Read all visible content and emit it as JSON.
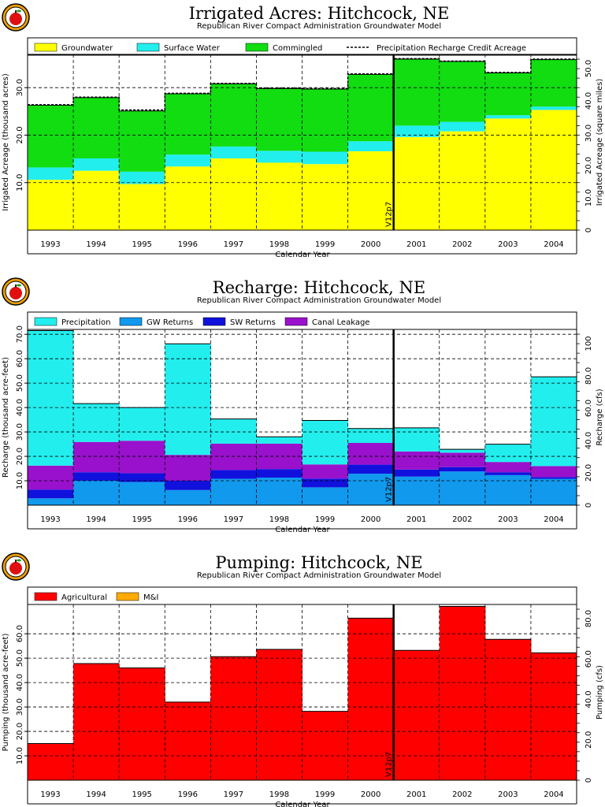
{
  "colors": {
    "groundwater": "#ffff00",
    "surface_water": "#22eeee",
    "commingled": "#11dd11",
    "precipitation": "#22eeee",
    "gw_returns": "#1199ee",
    "sw_returns": "#1111dd",
    "canal_leakage": "#9911cc",
    "agricultural": "#ff0000",
    "mi": "#ffaa00",
    "logo_apple": "#e01010",
    "logo_ring": "#f0a000"
  },
  "chart_data": [
    {
      "type": "area",
      "title": "Irrigated Acres: Hitchcock, NE",
      "subtitle": "Republican River Compact Administration Groundwater Model",
      "xlabel": "Calendar Year",
      "ylabel": "Irrigated Acreage (thousand acres)",
      "ylabel_right": "Irrigated Acreage (square miles)",
      "categories": [
        "1993",
        "1994",
        "1995",
        "1996",
        "1997",
        "1998",
        "1999",
        "2000",
        "2001",
        "2002",
        "2003",
        "2004"
      ],
      "ylim": [
        0,
        37
      ],
      "y_ticks": [
        "10.0",
        "20.0",
        "30.0"
      ],
      "y_ticks_right": [
        "0",
        "10.0",
        "20.0",
        "30.0",
        "40.0",
        "50.0"
      ],
      "grid": true,
      "legend_position": "top",
      "stacked": true,
      "series": [
        {
          "name": "Groundwater",
          "values": [
            10.6,
            12.5,
            9.7,
            13.4,
            15.1,
            14.2,
            13.9,
            16.6,
            19.6,
            20.8,
            23.5,
            25.3
          ]
        },
        {
          "name": "Surface Water",
          "values": [
            2.6,
            2.6,
            2.6,
            2.5,
            2.5,
            2.5,
            2.6,
            2.1,
            2.4,
            2.0,
            0.7,
            0.7
          ]
        },
        {
          "name": "Commingled",
          "values": [
            13.1,
            12.8,
            12.8,
            12.8,
            13.2,
            13.1,
            13.2,
            14.1,
            14.0,
            12.7,
            8.9,
            9.9
          ]
        }
      ],
      "line_series": {
        "name": "Precipitation Recharge Credit Acreage",
        "values": [
          26.4,
          28.0,
          25.3,
          28.8,
          30.9,
          29.9,
          29.8,
          32.9,
          36.1,
          35.6,
          33.2,
          36.0
        ]
      },
      "annotation": {
        "text": "V12p7",
        "x_between": [
          "2000",
          "2001"
        ]
      }
    },
    {
      "type": "area",
      "title": "Recharge: Hitchcock, NE",
      "subtitle": "Republican River Compact Administration Groundwater Model",
      "xlabel": "Calendar Year",
      "ylabel": "Recharge (thousand acre-feet)",
      "ylabel_right": "Recharge (cfs)",
      "categories": [
        "1993",
        "1994",
        "1995",
        "1996",
        "1997",
        "1998",
        "1999",
        "2000",
        "2001",
        "2002",
        "2003",
        "2004"
      ],
      "ylim": [
        0,
        72
      ],
      "y_ticks": [
        "10.0",
        "20.0",
        "30.0",
        "40.0",
        "50.0",
        "60.0",
        "70.0"
      ],
      "y_ticks_right": [
        "0",
        "20.0",
        "40.0",
        "60.0",
        "80.0",
        "100"
      ],
      "grid": true,
      "legend_position": "top",
      "stacked": true,
      "series": [
        {
          "name": "GW Returns",
          "values": [
            2.8,
            10.0,
            9.5,
            6.2,
            10.8,
            11.3,
            7.3,
            12.9,
            11.7,
            13.8,
            12.3,
            10.8
          ]
        },
        {
          "name": "SW Returns",
          "values": [
            3.6,
            3.5,
            3.6,
            3.8,
            3.6,
            3.5,
            3.6,
            3.7,
            2.9,
            1.8,
            1.2,
            0.7
          ]
        },
        {
          "name": "Canal Leakage",
          "values": [
            9.8,
            12.4,
            13.3,
            10.6,
            10.8,
            10.4,
            5.8,
            8.9,
            7.4,
            5.9,
            4.2,
            4.5
          ]
        },
        {
          "name": "Precipitation",
          "values": [
            55.3,
            15.7,
            13.6,
            45.5,
            10.1,
            2.8,
            18.0,
            5.9,
            9.7,
            1.4,
            7.3,
            36.6
          ]
        }
      ],
      "annotation": {
        "text": "V12p7",
        "x_between": [
          "2000",
          "2001"
        ]
      }
    },
    {
      "type": "area",
      "title": "Pumping: Hitchcock, NE",
      "subtitle": "Republican River Compact Administration Groundwater Model",
      "xlabel": "Calendar Year",
      "ylabel": "Pumping (thousand acre-feet)",
      "ylabel_right": "Pumping (cfs)",
      "categories": [
        "1993",
        "1994",
        "1995",
        "1996",
        "1997",
        "1998",
        "1999",
        "2000",
        "2001",
        "2002",
        "2003",
        "2004"
      ],
      "ylim": [
        0,
        72
      ],
      "y_ticks": [
        "10.0",
        "20.0",
        "30.0",
        "40.0",
        "50.0",
        "60.0"
      ],
      "y_ticks_right": [
        "0",
        "20.0",
        "40.0",
        "60.0",
        "80.0"
      ],
      "grid": true,
      "legend_position": "top",
      "stacked": true,
      "series": [
        {
          "name": "Agricultural",
          "values": [
            15.0,
            47.8,
            46.0,
            32.0,
            50.6,
            53.6,
            28.2,
            66.4,
            53.2,
            71.2,
            57.7,
            52.2
          ]
        },
        {
          "name": "M&I",
          "values": [
            0,
            0,
            0,
            0,
            0,
            0,
            0,
            0,
            0,
            0,
            0,
            0
          ]
        }
      ],
      "annotation": {
        "text": "V12p7",
        "x_between": [
          "2000",
          "2001"
        ]
      }
    }
  ]
}
